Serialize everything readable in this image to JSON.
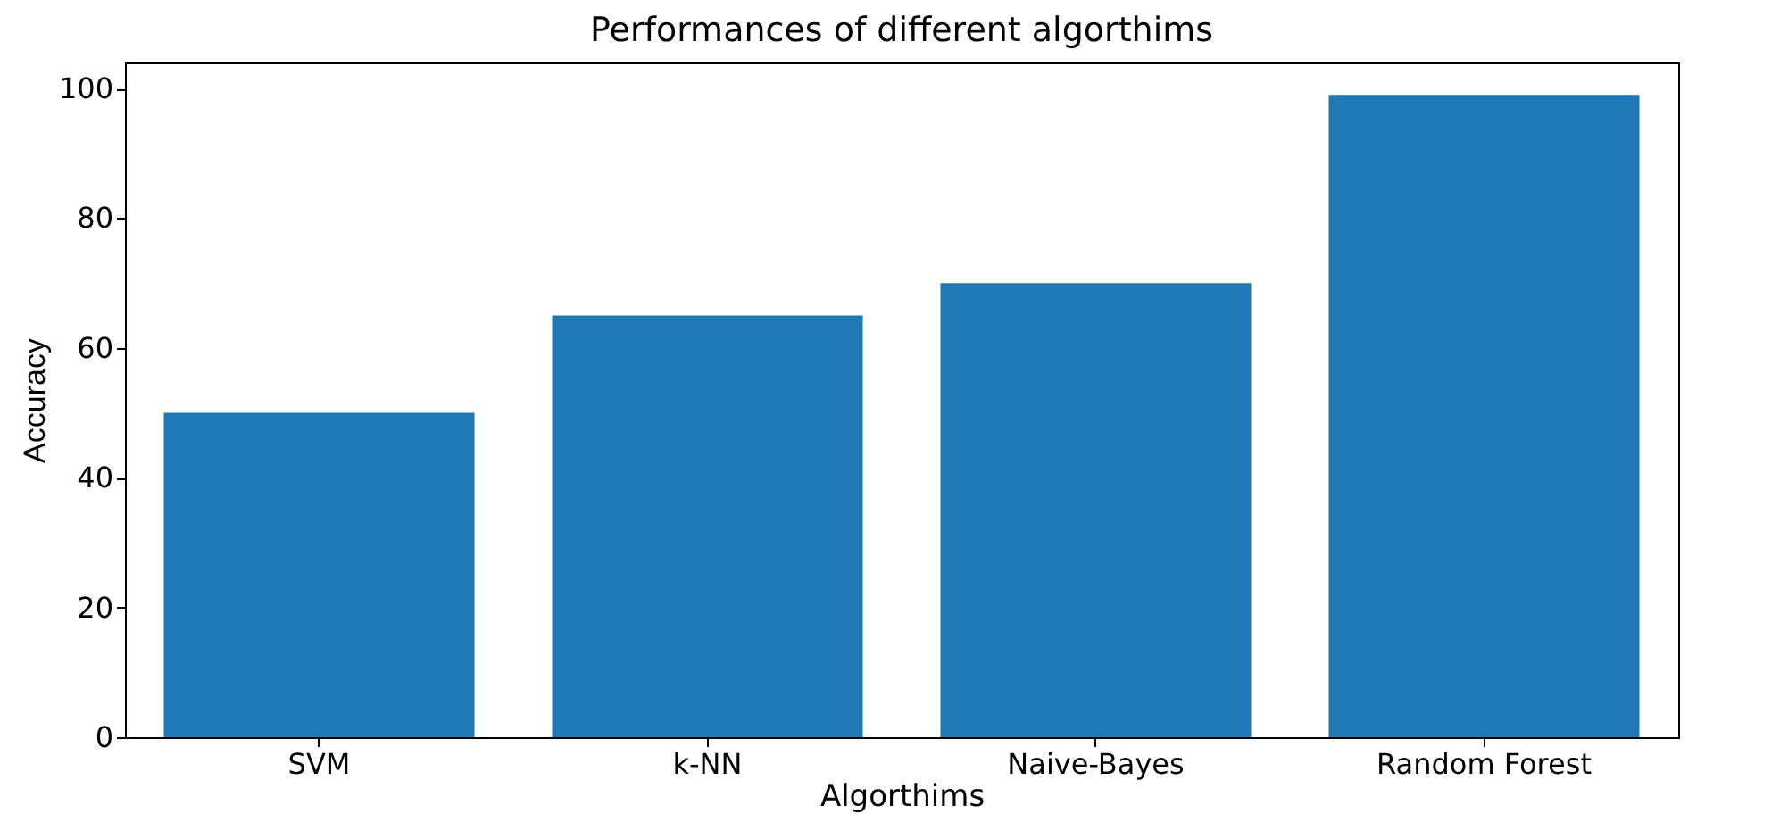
{
  "chart_data": {
    "type": "bar",
    "title": "Performances of different algorthims",
    "xlabel": "Algorthims",
    "ylabel": "Accuracy",
    "categories": [
      "SVM",
      "k-NN",
      "Naive-Bayes",
      "Random Forest"
    ],
    "values": [
      50,
      65,
      70,
      99
    ],
    "color": "#1f77b4",
    "ylim": [
      0,
      104
    ],
    "yticks": [
      0,
      20,
      40,
      60,
      80,
      100
    ],
    "grid": false
  }
}
